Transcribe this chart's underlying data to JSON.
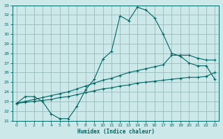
{
  "xlabel": "Humidex (Indice chaleur)",
  "bg_color": "#cce8e8",
  "line_color": "#006666",
  "grid_color": "#99bbbb",
  "xlim": [
    -0.5,
    23.5
  ],
  "ylim": [
    21,
    33
  ],
  "xticks": [
    0,
    1,
    2,
    3,
    4,
    5,
    6,
    7,
    8,
    9,
    10,
    11,
    12,
    13,
    14,
    15,
    16,
    17,
    18,
    19,
    20,
    21,
    22,
    23
  ],
  "yticks": [
    21,
    22,
    23,
    24,
    25,
    26,
    27,
    28,
    29,
    30,
    31,
    32,
    33
  ],
  "line1_x": [
    0,
    1,
    2,
    3,
    4,
    5,
    6,
    7,
    8,
    9,
    10,
    11,
    12,
    13,
    14,
    15,
    16,
    17,
    18,
    19,
    20,
    21,
    22,
    23
  ],
  "line1_y": [
    22.8,
    23.5,
    23.5,
    23.0,
    21.7,
    21.2,
    21.2,
    22.5,
    24.2,
    25.3,
    27.4,
    28.2,
    31.9,
    31.4,
    32.8,
    32.5,
    31.7,
    30.0,
    28.0,
    27.7,
    27.0,
    26.7,
    26.7,
    25.3
  ],
  "line2_x": [
    0,
    1,
    2,
    3,
    4,
    5,
    6,
    7,
    8,
    9,
    10,
    11,
    12,
    13,
    14,
    15,
    16,
    17,
    18,
    19,
    20,
    21,
    22,
    23
  ],
  "line2_y": [
    22.8,
    23.0,
    23.2,
    23.4,
    23.6,
    23.8,
    24.0,
    24.3,
    24.6,
    24.9,
    25.2,
    25.4,
    25.7,
    26.0,
    26.2,
    26.4,
    26.6,
    26.8,
    27.8,
    27.8,
    27.8,
    27.5,
    27.3,
    27.3
  ],
  "line3_x": [
    0,
    1,
    2,
    3,
    4,
    5,
    6,
    7,
    8,
    9,
    10,
    11,
    12,
    13,
    14,
    15,
    16,
    17,
    18,
    19,
    20,
    21,
    22,
    23
  ],
  "line3_y": [
    22.8,
    22.9,
    23.0,
    23.1,
    23.2,
    23.4,
    23.5,
    23.7,
    23.9,
    24.1,
    24.3,
    24.4,
    24.6,
    24.7,
    24.9,
    25.0,
    25.1,
    25.2,
    25.3,
    25.4,
    25.5,
    25.5,
    25.6,
    26.0
  ]
}
